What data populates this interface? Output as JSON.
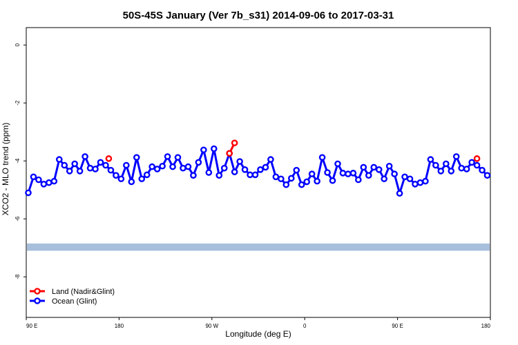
{
  "chart_data": {
    "type": "line",
    "title": "50S-45S January (Ver 7b_s31)   2014-09-06 to 2017-03-31",
    "xlabel": "Longitude (deg E)",
    "ylabel": "XCO2 - MLO trend (ppm)",
    "x_ticks": [
      "90 E",
      "180",
      "90 W",
      "0",
      "90 E",
      "180"
    ],
    "x_tick_values": [
      90,
      180,
      270,
      360,
      450,
      540
    ],
    "y_ticks": [
      "0",
      "-2",
      "-4",
      "-6",
      "-8"
    ],
    "y_tick_values": [
      0,
      -2,
      -4,
      -6,
      -8
    ],
    "xlim": [
      90,
      540
    ],
    "ylim": [
      -9.4,
      0.6
    ],
    "grid": false,
    "legend_position": "bottom-left",
    "band": {
      "y_range": [
        -6.85,
        -7.1
      ],
      "color": "#a8bfdc"
    },
    "series": [
      {
        "name": "Land (Nadir&Glint)",
        "color": "#ff0000",
        "segments": [
          {
            "x": [
              170
            ],
            "y": [
              -3.92
            ]
          },
          {
            "x": [
              287,
              292
            ],
            "y": [
              -3.74,
              -3.38
            ]
          },
          {
            "x": [
              527
            ],
            "y": [
              -3.92
            ]
          }
        ]
      },
      {
        "name": "Ocean (Glint)",
        "color": "#0000ff",
        "x": [
          92,
          97,
          102,
          107,
          112,
          117,
          122,
          127,
          132,
          137,
          142,
          147,
          152,
          157,
          162,
          167,
          172,
          177,
          182,
          187,
          192,
          197,
          202,
          207,
          212,
          217,
          222,
          227,
          232,
          237,
          242,
          247,
          252,
          257,
          262,
          267,
          272,
          277,
          282,
          287,
          292,
          297,
          302,
          307,
          312,
          317,
          322,
          327,
          332,
          337,
          342,
          347,
          352,
          357,
          362,
          367,
          372,
          377,
          382,
          387,
          392,
          397,
          402,
          407,
          412,
          417,
          422,
          427,
          432,
          437,
          442,
          447,
          452,
          457,
          462,
          467,
          472,
          477,
          482,
          487,
          492,
          497,
          502,
          507,
          512,
          517,
          522,
          527,
          532,
          537
        ],
        "y": [
          -5.1,
          -4.55,
          -4.65,
          -4.8,
          -4.75,
          -4.7,
          -3.95,
          -4.15,
          -4.35,
          -4.1,
          -4.35,
          -3.85,
          -4.25,
          -4.28,
          -4.05,
          -4.15,
          -4.32,
          -4.5,
          -4.62,
          -4.15,
          -4.72,
          -3.88,
          -4.62,
          -4.48,
          -4.2,
          -4.28,
          -4.18,
          -3.85,
          -4.2,
          -3.88,
          -4.25,
          -4.2,
          -4.5,
          -4.05,
          -3.62,
          -4.4,
          -3.58,
          -4.5,
          -4.25,
          -3.74,
          -4.38,
          -4.02,
          -4.3,
          -4.48,
          -4.48,
          -4.3,
          -4.22,
          -3.95,
          -4.55,
          -4.62,
          -4.82,
          -4.6,
          -4.32,
          -4.82,
          -4.72,
          -4.45,
          -4.7,
          -3.88,
          -4.4,
          -4.68,
          -4.1,
          -4.42,
          -4.45,
          -4.42,
          -4.65,
          -4.22,
          -4.5,
          -4.22,
          -4.3,
          -4.62,
          -4.18,
          -4.45,
          -5.12,
          -4.55,
          -4.62,
          -4.8,
          -4.75,
          -4.7,
          -3.95,
          -4.15,
          -4.35,
          -4.1,
          -4.35,
          -3.85,
          -4.25,
          -4.28,
          -4.05,
          -4.15,
          -4.32,
          -4.5
        ]
      }
    ]
  }
}
